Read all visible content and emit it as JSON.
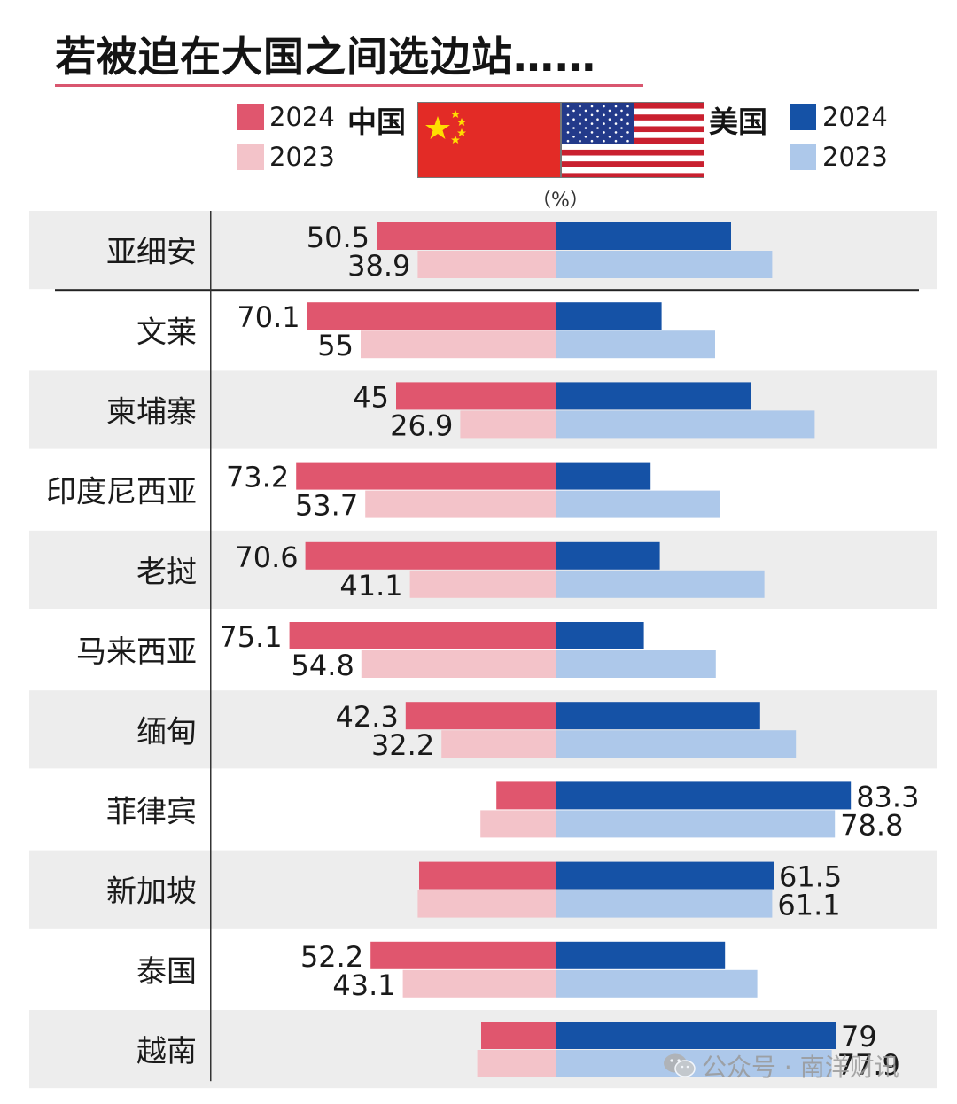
{
  "title": "若被迫在大国之间选边站……",
  "unit_label": "（%）",
  "legend": {
    "china_label": "中国",
    "usa_label": "美国",
    "year_2024": "2024",
    "year_2023": "2023"
  },
  "colors": {
    "china_2024": "#e0566e",
    "china_2023": "#f3c3c9",
    "usa_2024": "#1552a6",
    "usa_2023": "#adc8ea",
    "row_band": "#ededed"
  },
  "watermark": "公众号 · 南洋财讯",
  "chart_data": {
    "type": "bar",
    "orientation": "horizontal-diverging",
    "categories": [
      "亚细安",
      "文莱",
      "柬埔寨",
      "印度尼西亚",
      "老挝",
      "马来西亚",
      "缅甸",
      "菲律宾",
      "新加坡",
      "泰国",
      "越南"
    ],
    "series": [
      {
        "name": "中国 2024",
        "values": [
          50.5,
          70.1,
          45,
          73.2,
          70.6,
          75.1,
          42.3,
          16.7,
          38.5,
          52.2,
          21.0
        ]
      },
      {
        "name": "中国 2023",
        "values": [
          38.9,
          55,
          26.9,
          53.7,
          41.1,
          54.8,
          32.2,
          21.2,
          38.9,
          43.1,
          22.1
        ]
      },
      {
        "name": "美国 2024",
        "values": [
          49.5,
          29.9,
          55,
          26.8,
          29.4,
          24.9,
          57.7,
          83.3,
          61.5,
          47.8,
          79
        ]
      },
      {
        "name": "美国 2023",
        "values": [
          61.1,
          45,
          73.1,
          46.3,
          58.9,
          45.2,
          67.8,
          78.8,
          61.1,
          56.9,
          77.9
        ]
      }
    ],
    "labels": {
      "china_2024": [
        "50.5",
        "70.1",
        "45",
        "73.2",
        "70.6",
        "75.1",
        "42.3",
        "",
        "",
        "52.2",
        ""
      ],
      "china_2023": [
        "38.9",
        "55",
        "26.9",
        "53.7",
        "41.1",
        "54.8",
        "32.2",
        "",
        "",
        "43.1",
        ""
      ],
      "usa_2024": [
        "",
        "",
        "",
        "",
        "",
        "",
        "",
        "83.3",
        "61.5",
        "",
        "79"
      ],
      "usa_2023": [
        "",
        "",
        "",
        "",
        "",
        "",
        "",
        "78.8",
        "61.1",
        "",
        "77.9"
      ]
    },
    "xlim": [
      0,
      100
    ]
  }
}
